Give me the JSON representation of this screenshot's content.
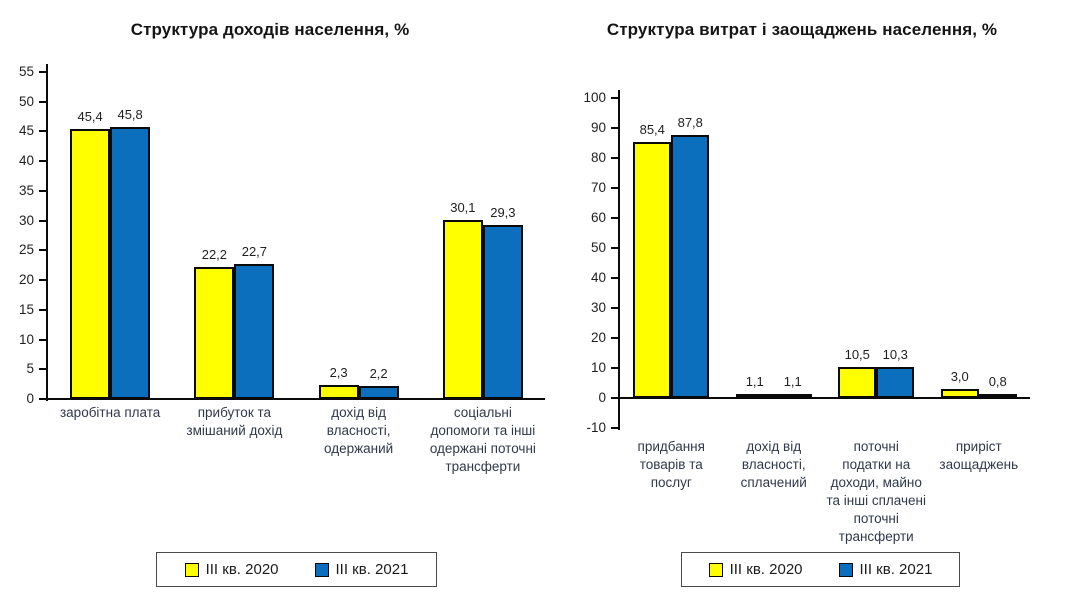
{
  "chart_data": [
    {
      "type": "bar",
      "title": "Структура доходів населення, %",
      "categories": [
        "заробітна плата",
        "прибуток та\nзмішаний дохід",
        "дохід від\nвласності,\nодержаний",
        "соціальні\nдопомоги та інші\nодержані поточні\nтрансферти"
      ],
      "series": [
        {
          "name": "III кв. 2020",
          "color": "#FFFF00",
          "values": [
            45.4,
            22.2,
            2.3,
            30.1
          ]
        },
        {
          "name": "III кв. 2021",
          "color": "#0B6FBE",
          "values": [
            45.8,
            22.7,
            2.2,
            29.3
          ]
        }
      ],
      "ylim": [
        0,
        55
      ],
      "ystep": 5,
      "grid": false,
      "legend_position": "bottom",
      "decimal_separator": ","
    },
    {
      "type": "bar",
      "title": "Структура витрат і заощаджень населення, %",
      "categories": [
        "придбання\nтоварів та\nпослуг",
        "дохід від\nвласності,\nсплачений",
        "поточні\nподатки на\nдоходи, майно\nта інші сплачені\nпоточні\nтрансферти",
        "приріст\nзаощаджень"
      ],
      "series": [
        {
          "name": "III кв. 2020",
          "color": "#FFFF00",
          "values": [
            85.4,
            1.1,
            10.5,
            3.0
          ]
        },
        {
          "name": "III кв. 2021",
          "color": "#0B6FBE",
          "values": [
            87.8,
            1.1,
            10.3,
            0.8
          ]
        }
      ],
      "ylim": [
        -10,
        100
      ],
      "ystep": 10,
      "grid": false,
      "legend_position": "bottom",
      "decimal_separator": ","
    }
  ],
  "colors": {
    "bar_2020": "#FFFF00",
    "bar_2021": "#0B6FBE",
    "bar_border": "#0a0a0a",
    "background": "#ffffff"
  }
}
